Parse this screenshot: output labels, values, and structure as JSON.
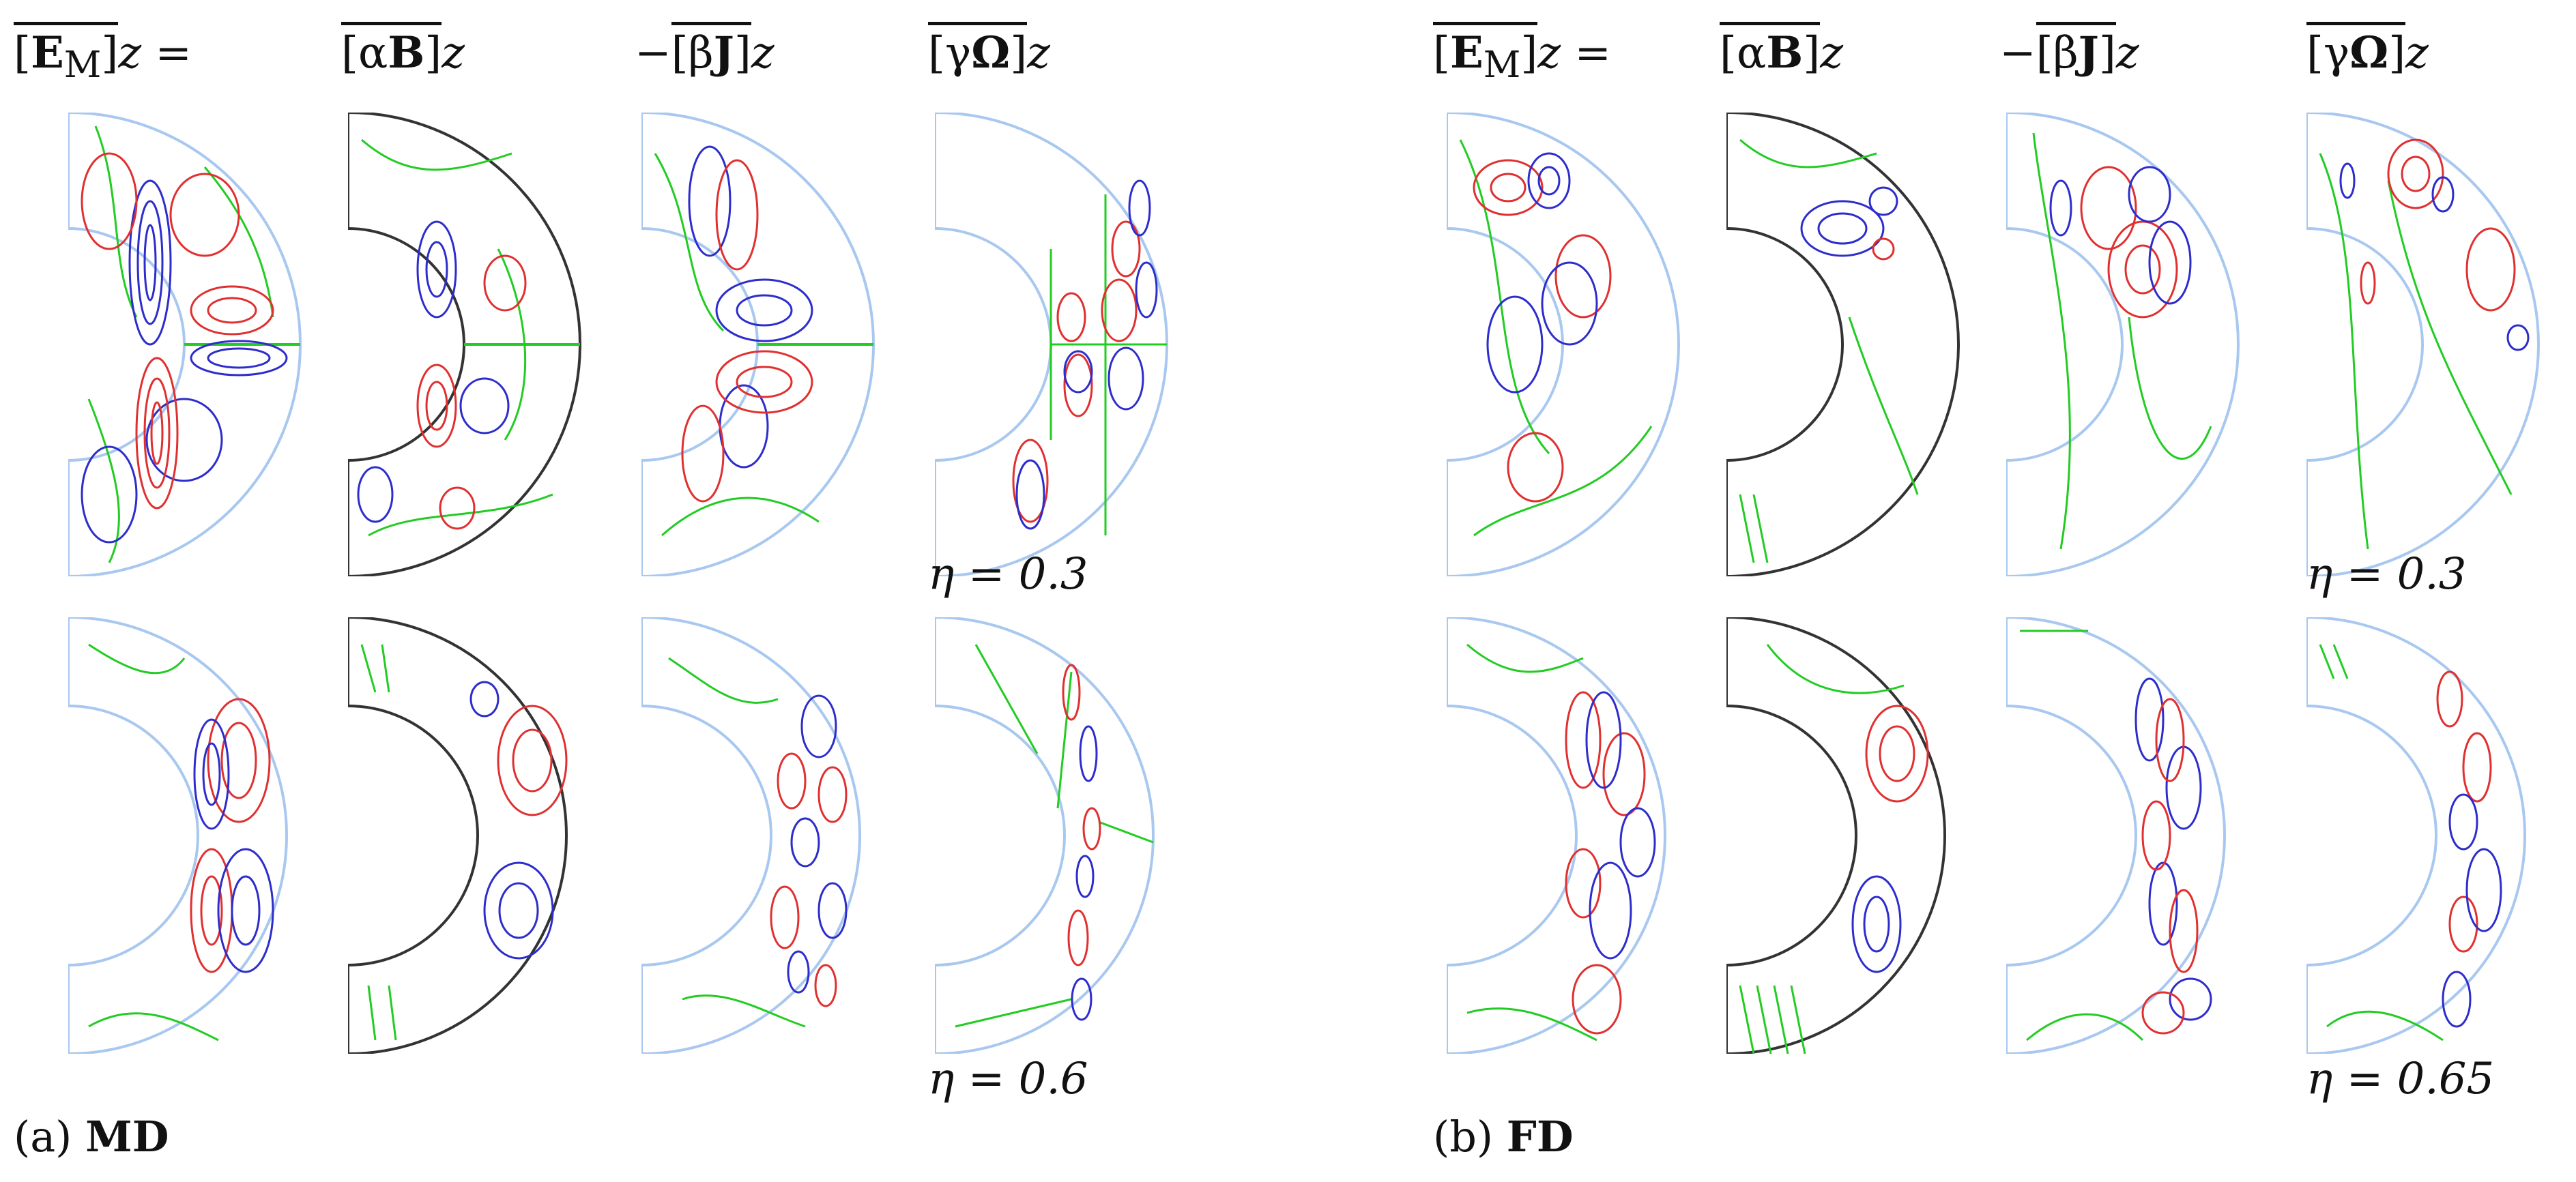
{
  "panel_a": {
    "caption_prefix": "(a)",
    "caption_bold": "MD",
    "headers": [
      "[E_M]_z =",
      "[αB]_z",
      "−[βJ]_z",
      "[γΩ]_z"
    ],
    "row_labels": [
      "η = 0.3",
      "η = 0.6"
    ]
  },
  "panel_b": {
    "caption_prefix": "(b)",
    "caption_bold": "FD",
    "headers": [
      "[E_M]_z =",
      "[αB]_z",
      "−[βJ]_z",
      "[γΩ]_z"
    ],
    "row_labels": [
      "η = 0.3",
      "η = 0.65"
    ]
  },
  "colors": {
    "positive": "#e03030",
    "negative": "#2d2dcc",
    "zero": "#22cc22",
    "boundary": "#a9c8f0",
    "boundary_dark": "#333333"
  }
}
